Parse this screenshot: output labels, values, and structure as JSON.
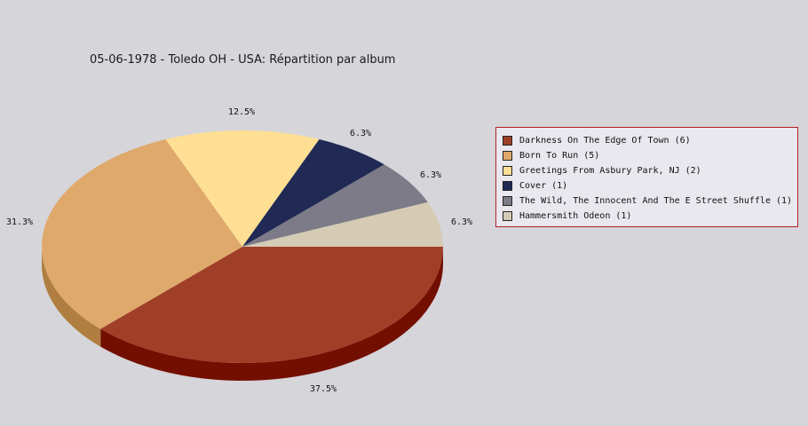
{
  "chart_data": {
    "type": "pie",
    "title": "05-06-1978 - Toledo OH - USA:  Répartition par album",
    "slices": [
      {
        "label": "Darkness On The Edge Of Town (6)",
        "value": 6,
        "pct_label": "37.5%",
        "color": "#a03f28",
        "side": "#730f00"
      },
      {
        "label": "Born To Run (5)",
        "value": 5,
        "pct_label": "31.3%",
        "color": "#dfa96c",
        "side": "#b07e40"
      },
      {
        "label": "Greetings From Asbury Park, NJ (2)",
        "value": 2,
        "pct_label": "12.5%",
        "color": "#fedf93",
        "side": "#d0b060"
      },
      {
        "label": "Cover (1)",
        "value": 1,
        "pct_label": "6.3%",
        "color": "#212a55",
        "side": "#10153a"
      },
      {
        "label": "The Wild, The Innocent And The E Street Shuffle (1)",
        "value": 1,
        "pct_label": "6.3%",
        "color": "#7c7b87",
        "side": "#55545e"
      },
      {
        "label": "Hammersmith Odeon  (1)",
        "value": 1,
        "pct_label": "6.3%",
        "color": "#d5cbb5",
        "side": "#a9a08a"
      }
    ],
    "legend_position": "right"
  }
}
